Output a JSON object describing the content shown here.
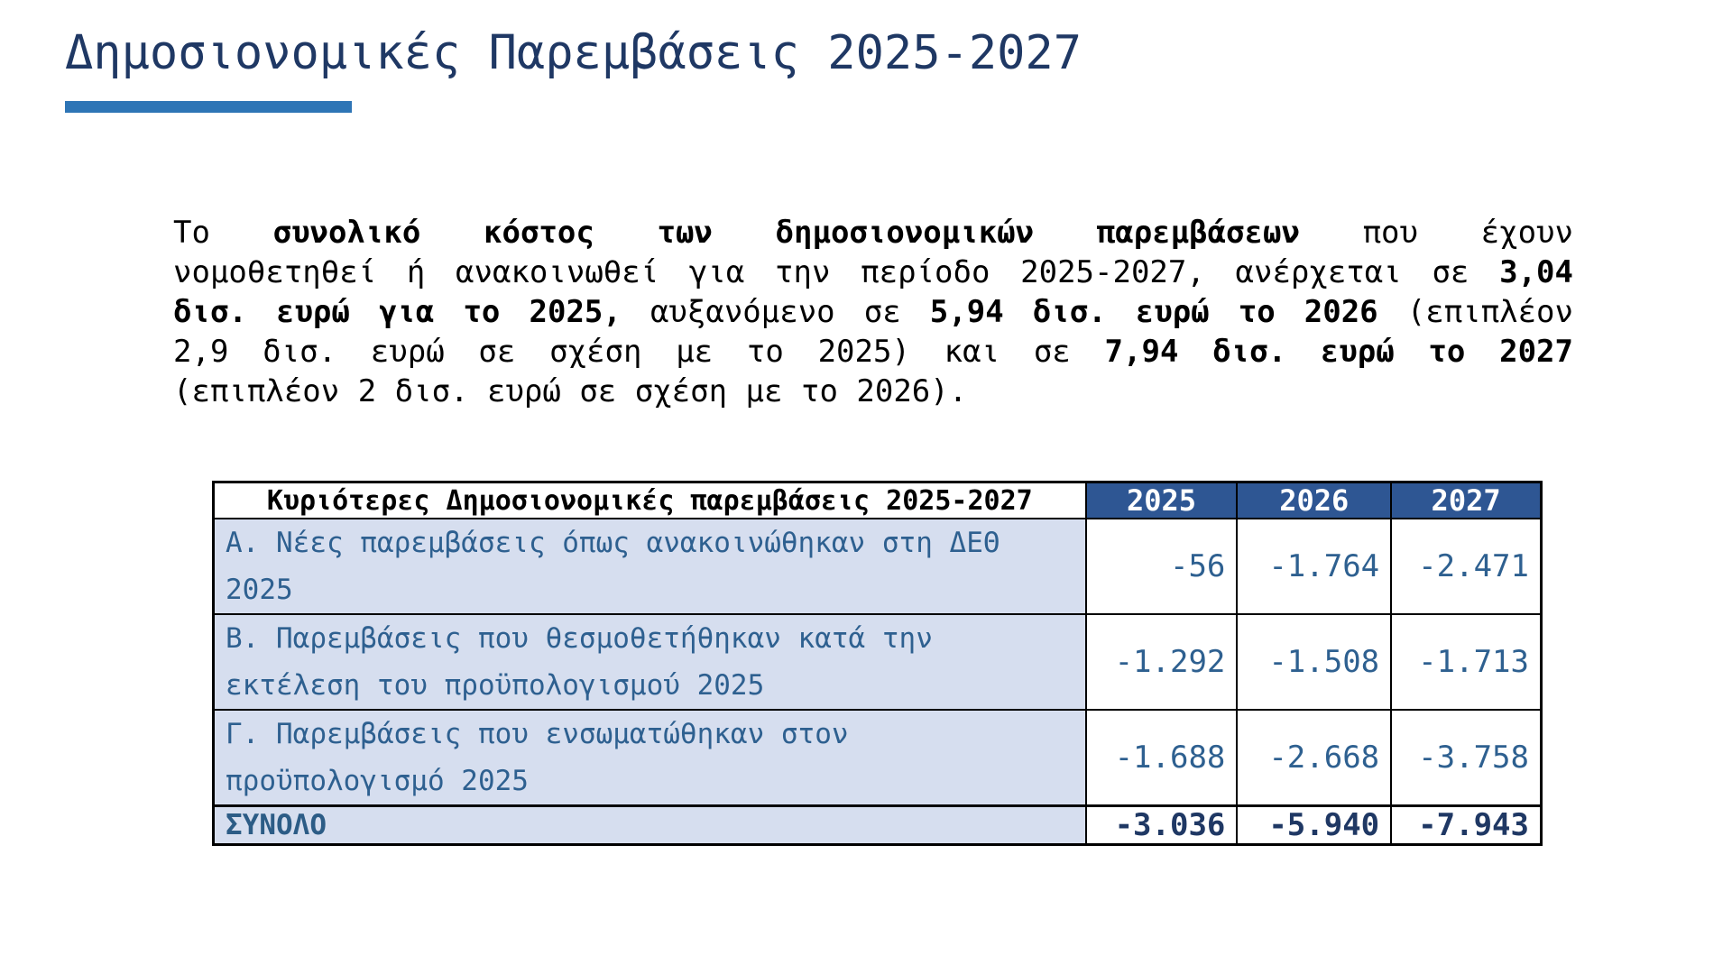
{
  "slide": {
    "background": "#FFFFFF",
    "accent_color": "#2E75B6",
    "title_color": "#1F3864"
  },
  "title": {
    "text": "Δημοσιονομικές Παρεμβάσεις 2025-2027"
  },
  "paragraph": {
    "lines": [
      [
        {
          "t": "Το ",
          "b": false
        },
        {
          "t": "συνολικό κόστος των δημοσιονομικών παρεμβάσεων",
          "b": true
        },
        {
          "t": " που έχουν",
          "b": false
        }
      ],
      [
        {
          "t": "νομοθετηθεί ή ανακοινωθεί για την περίοδο 2025-2027, ανέρχεται σε ",
          "b": false
        },
        {
          "t": "3,04",
          "b": true
        }
      ],
      [
        {
          "t": "δισ. ευρώ για το 2025,",
          "b": true
        },
        {
          "t": " αυξανόμενο σε ",
          "b": false
        },
        {
          "t": "5,94 δισ. ευρώ το 2026",
          "b": true
        },
        {
          "t": " (επιπλέον",
          "b": false
        }
      ],
      [
        {
          "t": "2,9 δισ. ευρώ σε σχέση με το 2025) και σε ",
          "b": false
        },
        {
          "t": "7,94 δισ. ευρώ το 2027",
          "b": true
        }
      ],
      [
        {
          "t": "(επιπλέον 2 δισ. ευρώ σε σχέση με το 2026).",
          "b": false
        }
      ]
    ]
  },
  "chart_data": {
    "type": "table",
    "title": "Κυριότερες Δημοσιονομικές παρεμβάσεις 2025-2027",
    "categories": [
      "2025",
      "2026",
      "2027"
    ],
    "series": [
      {
        "name": "Α. Νέες παρεμβάσεις όπως ανακοινώθηκαν στη ΔΕΘ 2025",
        "values": [
          -56,
          -1764,
          -2471
        ]
      },
      {
        "name": "Β. Παρεμβάσεις που θεσμοθετήθηκαν κατά την εκτέλεση του προϋπολογισμού 2025",
        "values": [
          -1292,
          -1508,
          -1713
        ]
      },
      {
        "name": "Γ. Παρεμβάσεις που ενσωματώθηκαν στον προϋπολογισμό 2025",
        "values": [
          -1688,
          -2668,
          -3758
        ]
      },
      {
        "name": "ΣΥΝΟΛΟ",
        "values": [
          -3036,
          -5940,
          -7943
        ]
      }
    ]
  },
  "table": {
    "header": {
      "label": "Κυριότερες Δημοσιονομικές παρεμβάσεις 2025-2027",
      "years": [
        "2025",
        "2026",
        "2027"
      ]
    },
    "rows": [
      {
        "label": "Α. Νέες παρεμβάσεις όπως ανακοινώθηκαν στη ΔΕΘ 2025",
        "values": [
          "-56",
          "-1.764",
          "-2.471"
        ]
      },
      {
        "label": "Β. Παρεμβάσεις που θεσμοθετήθηκαν κατά την εκτέλεση του προϋπολογισμού 2025",
        "values": [
          "-1.292",
          "-1.508",
          "-1.713"
        ]
      },
      {
        "label": "Γ. Παρεμβάσεις που ενσωματώθηκαν στον προϋπολογισμό 2025",
        "values": [
          "-1.688",
          "-2.668",
          "-3.758"
        ]
      }
    ],
    "total": {
      "label": "ΣΥΝΟΛΟ",
      "values": [
        "-3.036",
        "-5.940",
        "-7.943"
      ]
    },
    "colors": {
      "header_bg": "#2E5693",
      "header_text": "#FFFFFF",
      "label_bg": "#D6DEEF",
      "label_text": "#2E6090",
      "value_text": "#2E6090",
      "total_text": "#1F3864",
      "border": "#000000"
    }
  }
}
